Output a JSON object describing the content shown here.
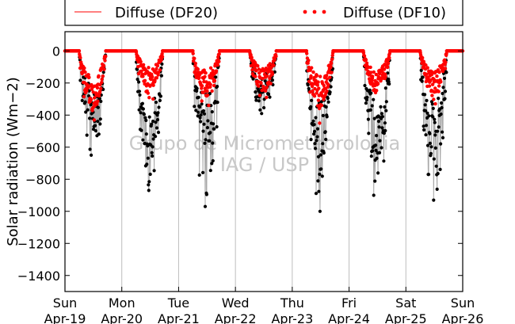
{
  "watermark": {
    "line1": "Grupo de Micrometeorologia",
    "line2": "IAG / USP"
  },
  "colors": {
    "df20": "#ff0000",
    "df10": "#ff0000",
    "df10_points": "#ff0000",
    "df20_points": "#000000",
    "grid": "#bdbdbd"
  },
  "chart_data": {
    "type": "scatter",
    "title": "",
    "xlabel": "",
    "ylabel": "Solar radiation (Wm−2)",
    "ylim": [
      -1500,
      120
    ],
    "yticks": [
      0,
      -200,
      -400,
      -600,
      -800,
      -1000,
      -1200,
      -1400
    ],
    "xlim": [
      0,
      7
    ],
    "xticks": [
      {
        "day": "Sun",
        "date": "Apr-19"
      },
      {
        "day": "Mon",
        "date": "Apr-20"
      },
      {
        "day": "Tue",
        "date": "Apr-21"
      },
      {
        "day": "Wed",
        "date": "Apr-22"
      },
      {
        "day": "Thu",
        "date": "Apr-23"
      },
      {
        "day": "Fri",
        "date": "Apr-24"
      },
      {
        "day": "Sat",
        "date": "Apr-25"
      },
      {
        "day": "Sun",
        "date": "Apr-26"
      }
    ],
    "grid": "vertical",
    "legend_position": "top, above plot",
    "series": [
      {
        "name": "Diffuse (DF20)",
        "style": "line + black points",
        "days": [
          {
            "date": "Apr-19",
            "daylight": [
              0.25,
              0.72
            ],
            "min": -650,
            "typical": -330
          },
          {
            "date": "Apr-20",
            "daylight": [
              1.25,
              1.72
            ],
            "min": -870,
            "typical": -560
          },
          {
            "date": "Apr-21",
            "daylight": [
              2.25,
              2.72
            ],
            "min": -970,
            "typical": -420
          },
          {
            "date": "Apr-22",
            "daylight": [
              3.25,
              3.72
            ],
            "min": -390,
            "typical": -230
          },
          {
            "date": "Apr-23",
            "daylight": [
              4.25,
              4.72
            ],
            "min": -1000,
            "typical": -500
          },
          {
            "date": "Apr-24",
            "daylight": [
              5.25,
              5.72
            ],
            "min": -900,
            "typical": -520
          },
          {
            "date": "Apr-25",
            "daylight": [
              6.25,
              6.72
            ],
            "min": -930,
            "typical": -500
          }
        ]
      },
      {
        "name": "Diffuse (DF10)",
        "style": "red points",
        "days": [
          {
            "date": "Apr-19",
            "daylight": [
              0.25,
              0.72
            ],
            "min": -430,
            "typical": -270
          },
          {
            "date": "Apr-20",
            "daylight": [
              1.25,
              1.72
            ],
            "min": -300,
            "typical": -170
          },
          {
            "date": "Apr-21",
            "daylight": [
              2.25,
              2.72
            ],
            "min": -340,
            "typical": -200
          },
          {
            "date": "Apr-22",
            "daylight": [
              3.25,
              3.72
            ],
            "min": -290,
            "typical": -180
          },
          {
            "date": "Apr-23",
            "daylight": [
              4.25,
              4.72
            ],
            "min": -450,
            "typical": -260
          },
          {
            "date": "Apr-24",
            "daylight": [
              5.25,
              5.72
            ],
            "min": -260,
            "typical": -190
          },
          {
            "date": "Apr-25",
            "daylight": [
              6.25,
              6.72
            ],
            "min": -330,
            "typical": -200
          }
        ]
      }
    ]
  }
}
